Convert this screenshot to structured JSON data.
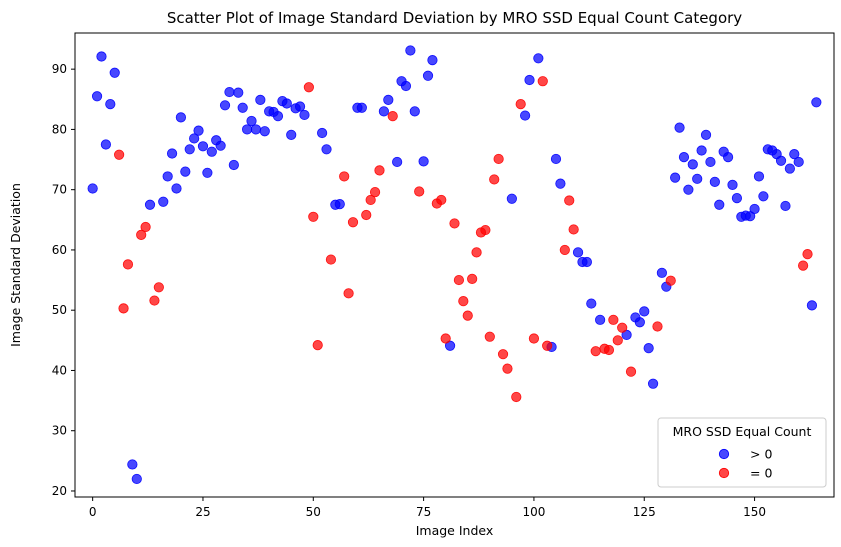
{
  "chart_data": {
    "type": "scatter",
    "title": "Scatter Plot of Image Standard Deviation by MRO SSD Equal Count Category",
    "xlabel": "Image Index",
    "ylabel": "Image Standard Deviation",
    "xlim": [
      -4,
      168
    ],
    "ylim": [
      19,
      96
    ],
    "xticks": [
      0,
      25,
      50,
      75,
      100,
      125,
      150
    ],
    "yticks": [
      20,
      30,
      40,
      50,
      60,
      70,
      80,
      90
    ],
    "grid": false,
    "legend": {
      "title": "MRO SSD Equal Count",
      "placement": "bottom-right",
      "entries": [
        "> 0",
        "= 0"
      ]
    },
    "series": [
      {
        "name": "> 0",
        "color": "#0000ff",
        "points": [
          [
            0,
            70.2
          ],
          [
            1,
            85.5
          ],
          [
            2,
            92.1
          ],
          [
            3,
            77.5
          ],
          [
            4,
            84.2
          ],
          [
            5,
            89.4
          ],
          [
            9,
            24.4
          ],
          [
            10,
            22.0
          ],
          [
            13,
            67.5
          ],
          [
            16,
            68.0
          ],
          [
            17,
            72.2
          ],
          [
            18,
            76.0
          ],
          [
            19,
            70.2
          ],
          [
            20,
            82.0
          ],
          [
            21,
            73.0
          ],
          [
            22,
            76.7
          ],
          [
            23,
            78.5
          ],
          [
            24,
            79.8
          ],
          [
            25,
            77.2
          ],
          [
            26,
            72.8
          ],
          [
            27,
            76.3
          ],
          [
            28,
            78.2
          ],
          [
            29,
            77.3
          ],
          [
            30,
            84.0
          ],
          [
            31,
            86.2
          ],
          [
            32,
            74.1
          ],
          [
            33,
            86.1
          ],
          [
            34,
            83.6
          ],
          [
            35,
            80.0
          ],
          [
            36,
            81.4
          ],
          [
            37,
            80.0
          ],
          [
            38,
            84.9
          ],
          [
            39,
            79.7
          ],
          [
            40,
            83.0
          ],
          [
            41,
            82.9
          ],
          [
            42,
            82.2
          ],
          [
            43,
            84.7
          ],
          [
            44,
            84.3
          ],
          [
            45,
            79.1
          ],
          [
            46,
            83.5
          ],
          [
            47,
            83.8
          ],
          [
            48,
            82.4
          ],
          [
            52,
            79.4
          ],
          [
            53,
            76.7
          ],
          [
            55,
            67.5
          ],
          [
            56,
            67.6
          ],
          [
            60,
            83.6
          ],
          [
            61,
            83.6
          ],
          [
            66,
            83.0
          ],
          [
            67,
            84.9
          ],
          [
            69,
            74.6
          ],
          [
            70,
            88.0
          ],
          [
            71,
            87.2
          ],
          [
            72,
            93.1
          ],
          [
            73,
            83.0
          ],
          [
            75,
            74.7
          ],
          [
            76,
            88.9
          ],
          [
            77,
            91.5
          ],
          [
            81,
            44.1
          ],
          [
            95,
            68.5
          ],
          [
            98,
            82.3
          ],
          [
            99,
            88.2
          ],
          [
            101,
            91.8
          ],
          [
            104,
            43.9
          ],
          [
            105,
            75.1
          ],
          [
            106,
            71.0
          ],
          [
            110,
            59.6
          ],
          [
            111,
            58.0
          ],
          [
            112,
            58.0
          ],
          [
            113,
            51.1
          ],
          [
            115,
            48.4
          ],
          [
            121,
            45.9
          ],
          [
            123,
            48.8
          ],
          [
            124,
            48.0
          ],
          [
            125,
            49.8
          ],
          [
            126,
            43.7
          ],
          [
            127,
            37.8
          ],
          [
            129,
            56.2
          ],
          [
            130,
            53.9
          ],
          [
            132,
            72.0
          ],
          [
            133,
            80.3
          ],
          [
            134,
            75.4
          ],
          [
            135,
            70.0
          ],
          [
            136,
            74.2
          ],
          [
            137,
            71.8
          ],
          [
            138,
            76.5
          ],
          [
            139,
            79.1
          ],
          [
            140,
            74.6
          ],
          [
            141,
            71.3
          ],
          [
            142,
            67.5
          ],
          [
            143,
            76.3
          ],
          [
            144,
            75.4
          ],
          [
            145,
            70.8
          ],
          [
            146,
            68.6
          ],
          [
            147,
            65.5
          ],
          [
            148,
            65.7
          ],
          [
            149,
            65.6
          ],
          [
            150,
            66.8
          ],
          [
            151,
            72.2
          ],
          [
            152,
            68.9
          ],
          [
            153,
            76.7
          ],
          [
            154,
            76.5
          ],
          [
            155,
            75.9
          ],
          [
            156,
            74.8
          ],
          [
            157,
            67.3
          ],
          [
            158,
            73.5
          ],
          [
            159,
            75.9
          ],
          [
            160,
            74.6
          ],
          [
            163,
            50.8
          ],
          [
            164,
            84.5
          ]
        ]
      },
      {
        "name": "= 0",
        "color": "#ff0000",
        "points": [
          [
            6,
            75.8
          ],
          [
            7,
            50.3
          ],
          [
            8,
            57.6
          ],
          [
            11,
            62.5
          ],
          [
            12,
            63.8
          ],
          [
            14,
            51.6
          ],
          [
            15,
            53.8
          ],
          [
            49,
            87.0
          ],
          [
            50,
            65.5
          ],
          [
            51,
            44.2
          ],
          [
            54,
            58.4
          ],
          [
            57,
            72.2
          ],
          [
            58,
            52.8
          ],
          [
            59,
            64.6
          ],
          [
            62,
            65.8
          ],
          [
            63,
            68.3
          ],
          [
            64,
            69.6
          ],
          [
            65,
            73.2
          ],
          [
            68,
            82.2
          ],
          [
            74,
            69.7
          ],
          [
            78,
            67.7
          ],
          [
            79,
            68.3
          ],
          [
            80,
            45.3
          ],
          [
            82,
            64.4
          ],
          [
            83,
            55.0
          ],
          [
            84,
            51.5
          ],
          [
            85,
            49.1
          ],
          [
            86,
            55.2
          ],
          [
            87,
            59.6
          ],
          [
            88,
            62.9
          ],
          [
            89,
            63.3
          ],
          [
            90,
            45.6
          ],
          [
            91,
            71.7
          ],
          [
            92,
            75.1
          ],
          [
            93,
            42.7
          ],
          [
            94,
            40.3
          ],
          [
            96,
            35.6
          ],
          [
            97,
            84.2
          ],
          [
            100,
            45.3
          ],
          [
            102,
            88.0
          ],
          [
            103,
            44.1
          ],
          [
            107,
            60.0
          ],
          [
            108,
            68.2
          ],
          [
            109,
            63.4
          ],
          [
            114,
            43.2
          ],
          [
            116,
            43.6
          ],
          [
            117,
            43.4
          ],
          [
            118,
            48.4
          ],
          [
            119,
            45.0
          ],
          [
            120,
            47.1
          ],
          [
            122,
            39.8
          ],
          [
            128,
            47.3
          ],
          [
            131,
            54.9
          ],
          [
            161,
            57.4
          ],
          [
            162,
            59.3
          ]
        ]
      }
    ]
  }
}
